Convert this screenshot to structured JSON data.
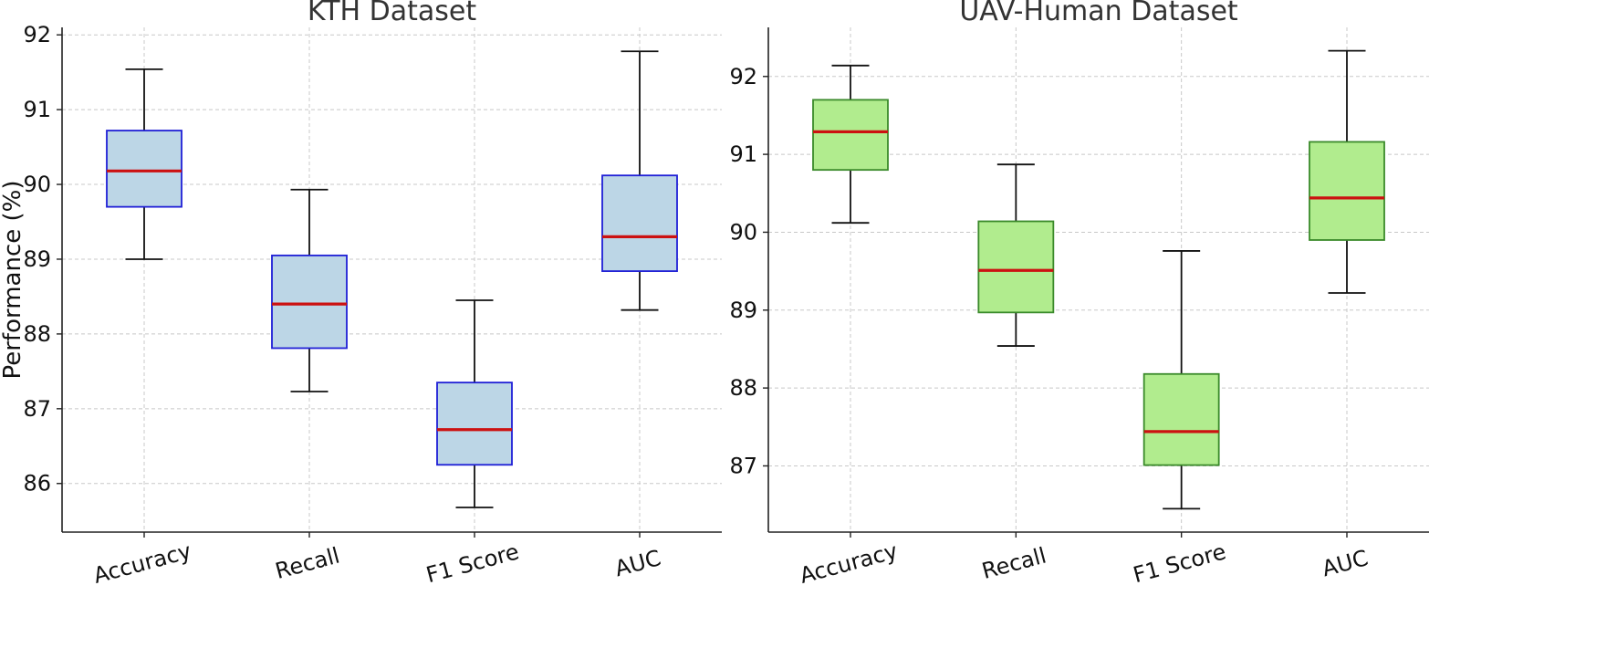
{
  "chart_data": [
    {
      "type": "box",
      "title": "KTH Dataset",
      "ylabel": "Performance (%)",
      "categories": [
        "Accuracy",
        "Recall",
        "F1 Score",
        "AUC"
      ],
      "yticks": [
        86,
        87,
        88,
        89,
        90,
        91,
        92
      ],
      "ylim": [
        85.35,
        92.1
      ],
      "box_fill": "#bcd6e6",
      "box_edge": "#1f1fd6",
      "median_color": "#cc1111",
      "boxes": [
        {
          "whisker_low": 89.0,
          "q1": 89.7,
          "median": 90.18,
          "q3": 90.72,
          "whisker_high": 91.54
        },
        {
          "whisker_low": 87.23,
          "q1": 87.81,
          "median": 88.4,
          "q3": 89.05,
          "whisker_high": 89.93
        },
        {
          "whisker_low": 85.68,
          "q1": 86.25,
          "median": 86.72,
          "q3": 87.35,
          "whisker_high": 88.45
        },
        {
          "whisker_low": 88.32,
          "q1": 88.84,
          "median": 89.3,
          "q3": 90.12,
          "whisker_high": 91.78
        }
      ]
    },
    {
      "type": "box",
      "title": "UAV-Human Dataset",
      "ylabel": "",
      "categories": [
        "Accuracy",
        "Recall",
        "F1 Score",
        "AUC"
      ],
      "yticks": [
        87,
        88,
        89,
        90,
        91,
        92
      ],
      "ylim": [
        86.15,
        92.63
      ],
      "box_fill": "#b1ec8e",
      "box_edge": "#3a8a2a",
      "median_color": "#cc1111",
      "boxes": [
        {
          "whisker_low": 90.12,
          "q1": 90.8,
          "median": 91.29,
          "q3": 91.7,
          "whisker_high": 92.14
        },
        {
          "whisker_low": 88.54,
          "q1": 88.97,
          "median": 89.51,
          "q3": 90.14,
          "whisker_high": 90.87
        },
        {
          "whisker_low": 86.45,
          "q1": 87.01,
          "median": 87.44,
          "q3": 88.18,
          "whisker_high": 89.76
        },
        {
          "whisker_low": 89.22,
          "q1": 89.9,
          "median": 90.44,
          "q3": 91.16,
          "whisker_high": 92.33
        }
      ]
    }
  ]
}
